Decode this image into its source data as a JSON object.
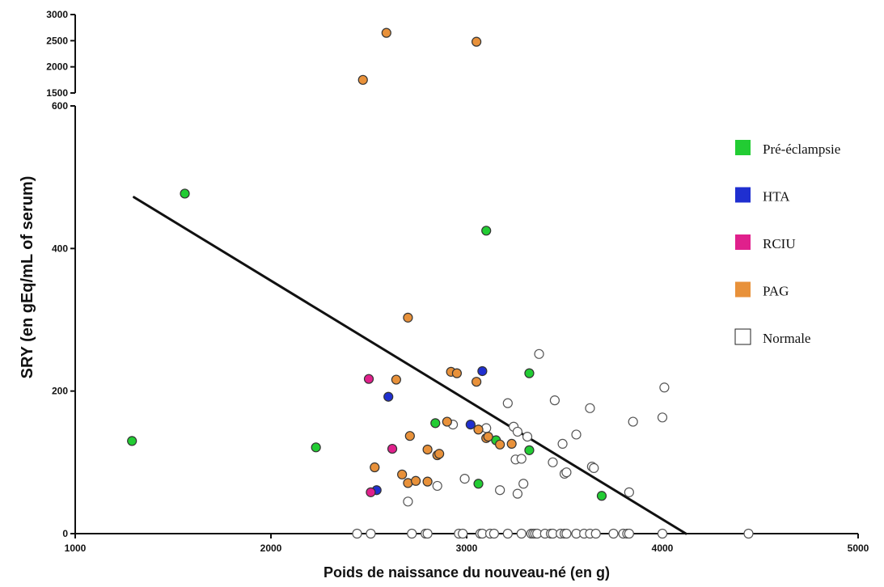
{
  "chart_data": {
    "type": "scatter",
    "xlabel": "Poids de naissance du nouveau-né (en g)",
    "ylabel": "SRY  (en gEq/mL of serum)",
    "xlim": [
      1000,
      5000
    ],
    "ylim_lower": [
      0,
      600
    ],
    "ylim_upper": [
      1500,
      3000
    ],
    "y_axis_break": true,
    "x_ticks": [
      "1000",
      "2000",
      "3000",
      "4000",
      "5000"
    ],
    "y_ticks_lower": [
      "0",
      "200",
      "400",
      "600"
    ],
    "y_ticks_upper": [
      "1500",
      "2000",
      "2500",
      "3000"
    ],
    "legend_position": "right",
    "grid": false,
    "regression_line": {
      "x": [
        1300,
        4120
      ],
      "y": [
        472,
        0
      ]
    },
    "series": [
      {
        "name": "Pré-éclampsie",
        "color": "#22cc33",
        "points": [
          [
            1290,
            130
          ],
          [
            1560,
            477
          ],
          [
            2230,
            121
          ],
          [
            2840,
            155
          ],
          [
            3060,
            70
          ],
          [
            3100,
            425
          ],
          [
            3150,
            131
          ],
          [
            3320,
            117
          ],
          [
            3320,
            225
          ],
          [
            3690,
            53
          ]
        ]
      },
      {
        "name": "HTA",
        "color": "#1f2fd0",
        "points": [
          [
            2540,
            61
          ],
          [
            2600,
            192
          ],
          [
            3020,
            153
          ],
          [
            3080,
            228
          ]
        ]
      },
      {
        "name": "RCIU",
        "color": "#e0208c",
        "points": [
          [
            2500,
            217
          ],
          [
            2510,
            58
          ],
          [
            2620,
            119
          ]
        ]
      },
      {
        "name": "PAG",
        "color": "#e8913a",
        "points": [
          [
            2470,
            1750
          ],
          [
            2590,
            2650
          ],
          [
            3050,
            2480
          ],
          [
            2530,
            93
          ],
          [
            2640,
            216
          ],
          [
            2670,
            83
          ],
          [
            2700,
            303
          ],
          [
            2700,
            71
          ],
          [
            2710,
            137
          ],
          [
            2740,
            74
          ],
          [
            2800,
            118
          ],
          [
            2800,
            73
          ],
          [
            2850,
            110
          ],
          [
            2860,
            112
          ],
          [
            2900,
            157
          ],
          [
            2920,
            227
          ],
          [
            2950,
            225
          ],
          [
            3050,
            213
          ],
          [
            3060,
            146
          ],
          [
            3100,
            134
          ],
          [
            3110,
            136
          ],
          [
            3170,
            125
          ],
          [
            3230,
            126
          ]
        ]
      },
      {
        "name": "Normale",
        "color": "#ffffff",
        "points": [
          [
            2700,
            45
          ],
          [
            2850,
            67
          ],
          [
            2930,
            153
          ],
          [
            2990,
            77
          ],
          [
            3100,
            148
          ],
          [
            3170,
            61
          ],
          [
            3210,
            183
          ],
          [
            3240,
            150
          ],
          [
            3250,
            104
          ],
          [
            3260,
            56
          ],
          [
            3260,
            143
          ],
          [
            3280,
            105
          ],
          [
            3290,
            70
          ],
          [
            3310,
            136
          ],
          [
            3370,
            252
          ],
          [
            3440,
            100
          ],
          [
            3450,
            187
          ],
          [
            3490,
            126
          ],
          [
            3500,
            84
          ],
          [
            3510,
            86
          ],
          [
            3560,
            139
          ],
          [
            3630,
            176
          ],
          [
            3640,
            94
          ],
          [
            3650,
            92
          ],
          [
            3830,
            58
          ],
          [
            3850,
            157
          ],
          [
            4000,
            163
          ],
          [
            4010,
            205
          ],
          [
            2440,
            0
          ],
          [
            2510,
            0
          ],
          [
            2720,
            0
          ],
          [
            2790,
            0
          ],
          [
            2800,
            0
          ],
          [
            2960,
            0
          ],
          [
            2980,
            0
          ],
          [
            3070,
            0
          ],
          [
            3080,
            0
          ],
          [
            3120,
            0
          ],
          [
            3140,
            0
          ],
          [
            3210,
            0
          ],
          [
            3280,
            0
          ],
          [
            3330,
            0
          ],
          [
            3340,
            0
          ],
          [
            3350,
            0
          ],
          [
            3360,
            0
          ],
          [
            3400,
            0
          ],
          [
            3430,
            0
          ],
          [
            3440,
            0
          ],
          [
            3480,
            0
          ],
          [
            3500,
            0
          ],
          [
            3510,
            0
          ],
          [
            3560,
            0
          ],
          [
            3600,
            0
          ],
          [
            3630,
            0
          ],
          [
            3660,
            0
          ],
          [
            3750,
            0
          ],
          [
            3800,
            0
          ],
          [
            3820,
            0
          ],
          [
            3830,
            0
          ],
          [
            4000,
            0
          ],
          [
            4440,
            0
          ]
        ]
      }
    ]
  }
}
